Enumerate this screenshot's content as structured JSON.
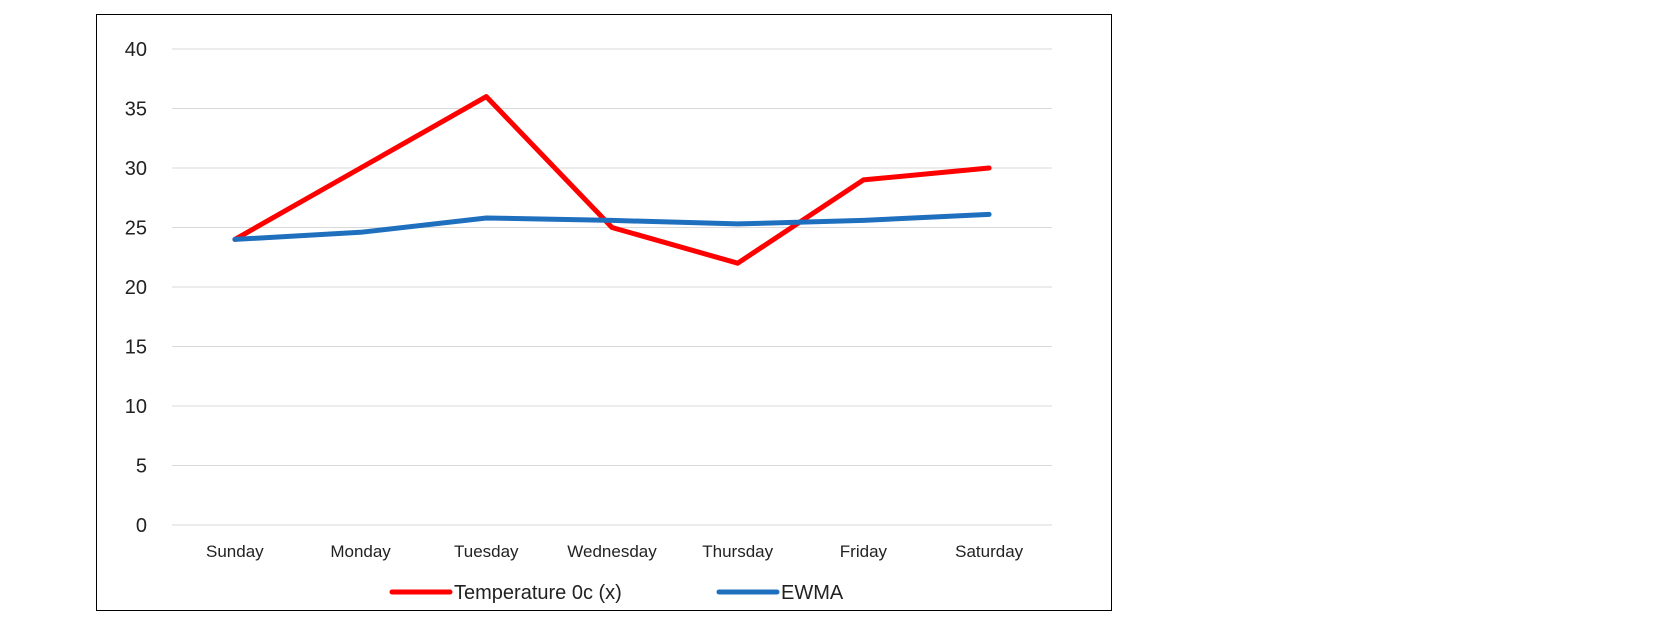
{
  "chart_data": {
    "type": "line",
    "title": "",
    "xlabel": "",
    "ylabel": "",
    "categories": [
      "Sunday",
      "Monday",
      "Tuesday",
      "Wednesday",
      "Thursday",
      "Friday",
      "Saturday"
    ],
    "ylim": [
      0,
      40
    ],
    "yticks": [
      0,
      5,
      10,
      15,
      20,
      25,
      30,
      35,
      40
    ],
    "grid": true,
    "legend_position": "bottom",
    "series": [
      {
        "name": "Temperature 0c (x)",
        "color": "#ff0000",
        "values": [
          24,
          30,
          36,
          25,
          22,
          29,
          30
        ]
      },
      {
        "name": "EWMA",
        "color": "#1f6fbf",
        "values": [
          24,
          24.6,
          25.8,
          25.6,
          25.3,
          25.6,
          26.1
        ]
      }
    ]
  }
}
